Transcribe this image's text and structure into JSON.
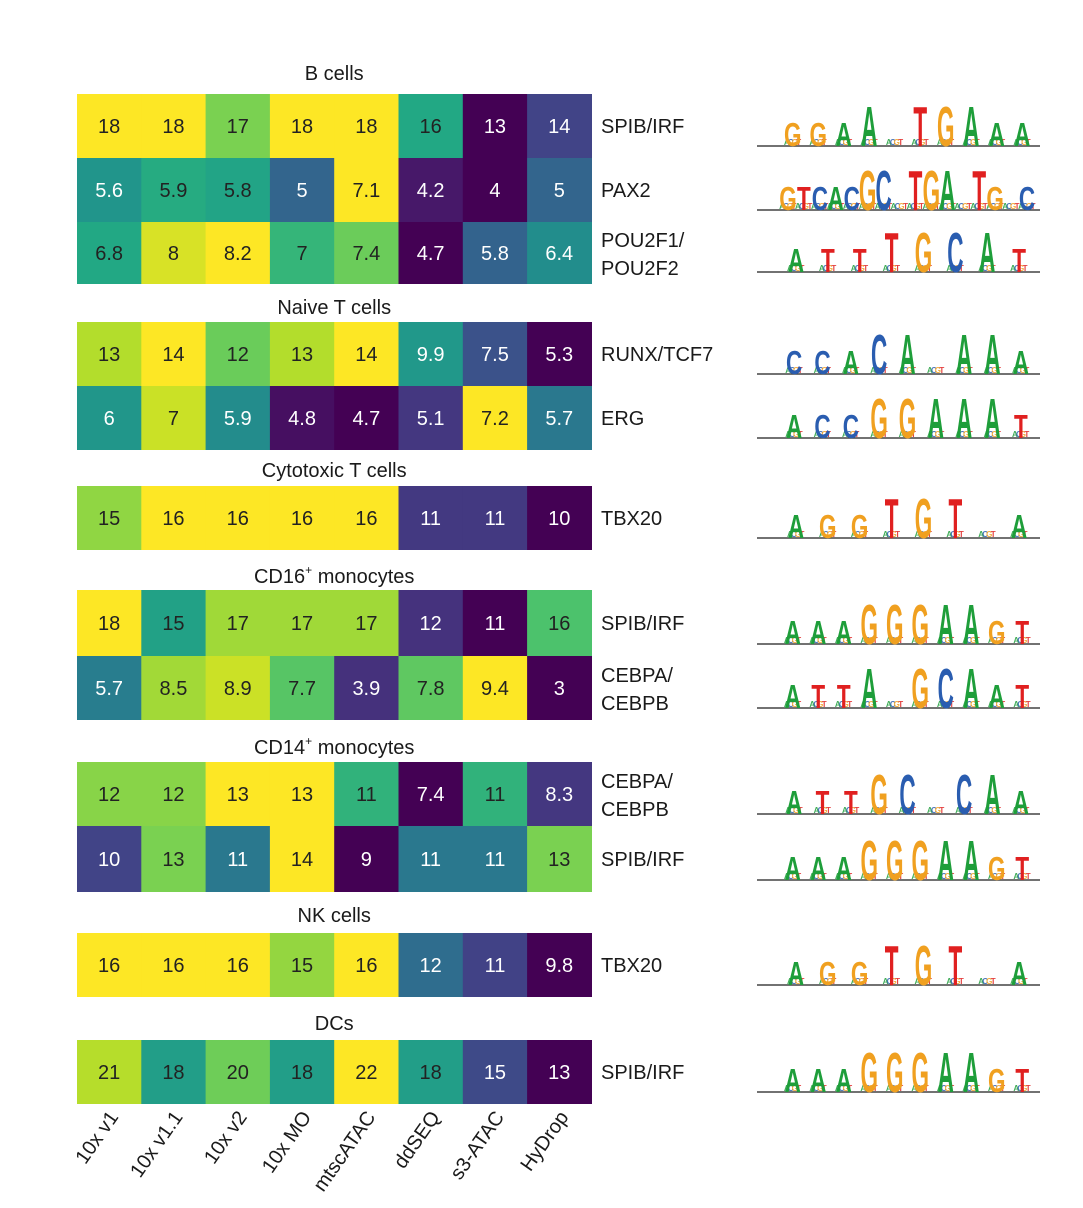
{
  "chart_data": {
    "type": "heatmap",
    "colormap": "viridis",
    "columns": [
      "10x v1",
      "10x v1.1",
      "10x v2",
      "10x MO",
      "mtscATAC",
      "ddSEQ",
      "s3-ATAC",
      "HyDrop"
    ],
    "groups": [
      {
        "title": "B cells",
        "rows": [
          {
            "motif": [
              "SPIB/IRF"
            ],
            "values": [
              "18",
              "18",
              "17",
              "18",
              "18",
              "16",
              "13",
              "14"
            ],
            "logo": "GGAA.TGAAA"
          },
          {
            "motif": [
              "PAX2"
            ],
            "values": [
              "5.6",
              "5.9",
              "5.8",
              "5",
              "7.1",
              "4.2",
              "4",
              "5"
            ],
            "logo": "GTCACGC.TGA TG C"
          },
          {
            "motif": [
              "POU2F1/",
              "POU2F2"
            ],
            "values": [
              "6.8",
              "8",
              "8.2",
              "7",
              "7.4",
              "4.7",
              "5.8",
              "6.4"
            ],
            "logo": "ATTTGCAT"
          }
        ]
      },
      {
        "title": "Naive T cells",
        "rows": [
          {
            "motif": [
              "RUNX/TCF7"
            ],
            "values": [
              "13",
              "14",
              "12",
              "13",
              "14",
              "9.9",
              "7.5",
              "5.3"
            ],
            "logo": "CCACA.AAA"
          },
          {
            "motif": [
              "ERG"
            ],
            "values": [
              "6",
              "7",
              "5.9",
              "4.8",
              "4.7",
              "5.1",
              "7.2",
              "5.7"
            ],
            "logo": "ACCGGAAAT"
          }
        ]
      },
      {
        "title": "Cytotoxic T cells",
        "rows": [
          {
            "motif": [
              "TBX20"
            ],
            "values": [
              "15",
              "16",
              "16",
              "16",
              "16",
              "11",
              "11",
              "10"
            ],
            "logo": "AGGTGT.A"
          }
        ]
      },
      {
        "title": "CD16",
        "title_sup": "+",
        "title_rest": " monocytes",
        "rows": [
          {
            "motif": [
              "SPIB/IRF"
            ],
            "values": [
              "18",
              "15",
              "17",
              "17",
              "17",
              "12",
              "11",
              "16"
            ],
            "logo": "AAAGGGAAGT"
          },
          {
            "motif": [
              "CEBPA/",
              "CEBPB"
            ],
            "values": [
              "5.7",
              "8.5",
              "8.9",
              "7.7",
              "3.9",
              "7.8",
              "9.4",
              "3"
            ],
            "logo": "ATTA GCAAT"
          }
        ]
      },
      {
        "title": "CD14",
        "title_sup": "+",
        "title_rest": " monocytes",
        "rows": [
          {
            "motif": [
              "CEBPA/",
              "CEBPB"
            ],
            "values": [
              "12",
              "12",
              "13",
              "13",
              "11",
              "7.4",
              "11",
              "8.3"
            ],
            "logo": "ATTGC.CAA"
          },
          {
            "motif": [
              "SPIB/IRF"
            ],
            "values": [
              "10",
              "13",
              "11",
              "14",
              "9",
              "11",
              "11",
              "13"
            ],
            "logo": "AAAGGGAAGT"
          }
        ]
      },
      {
        "title": "NK cells",
        "rows": [
          {
            "motif": [
              "TBX20"
            ],
            "values": [
              "16",
              "16",
              "16",
              "15",
              "16",
              "12",
              "11",
              "9.8"
            ],
            "logo": "AGGTGT.A"
          }
        ]
      },
      {
        "title": "DCs",
        "rows": [
          {
            "motif": [
              "SPIB/IRF"
            ],
            "values": [
              "21",
              "18",
              "20",
              "18",
              "22",
              "18",
              "15",
              "13"
            ],
            "logo": "AAAGGGAAGT"
          }
        ]
      }
    ]
  },
  "colors": {
    "A": "#1e9e3a",
    "C": "#2a5db0",
    "G": "#f0a020",
    "T": "#e02020"
  }
}
